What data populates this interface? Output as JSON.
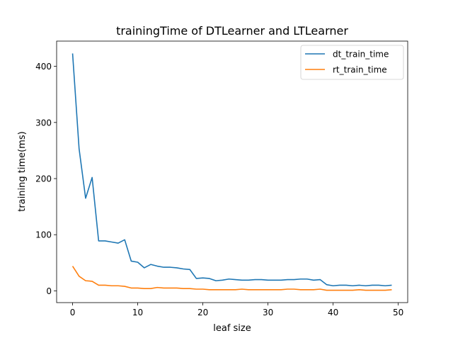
{
  "chart_data": {
    "type": "line",
    "title": "trainingTime of DTLearner and LTLearner",
    "xlabel": "leaf size",
    "ylabel": "training time(ms)",
    "xlim": [
      -2.45,
      51.45
    ],
    "ylim": [
      -21,
      445
    ],
    "xticks": [
      0,
      10,
      20,
      30,
      40,
      50
    ],
    "yticks": [
      0,
      100,
      200,
      300,
      400
    ],
    "grid": false,
    "legend_position": "top-right",
    "x": [
      0,
      1,
      2,
      3,
      4,
      5,
      6,
      7,
      8,
      9,
      10,
      11,
      12,
      13,
      14,
      15,
      16,
      17,
      18,
      19,
      20,
      21,
      22,
      23,
      24,
      25,
      26,
      27,
      28,
      29,
      30,
      31,
      32,
      33,
      34,
      35,
      36,
      37,
      38,
      39,
      40,
      41,
      42,
      43,
      44,
      45,
      46,
      47,
      48,
      49
    ],
    "series": [
      {
        "name": "dt_train_time",
        "color": "#1f77b4",
        "values": [
          423,
          253,
          165,
          202,
          89,
          89,
          87,
          85,
          91,
          53,
          51,
          41,
          47,
          44,
          42,
          42,
          41,
          39,
          38,
          22,
          23,
          22,
          18,
          19,
          21,
          20,
          19,
          19,
          20,
          20,
          19,
          19,
          19,
          20,
          20,
          21,
          21,
          19,
          20,
          11,
          9,
          10,
          10,
          9,
          10,
          9,
          10,
          10,
          9,
          10
        ]
      },
      {
        "name": "rt_train_time",
        "color": "#ff7f0e",
        "values": [
          44,
          26,
          18,
          17,
          10,
          10,
          9,
          9,
          8,
          5,
          5,
          4,
          4,
          6,
          5,
          5,
          5,
          4,
          4,
          3,
          3,
          2,
          2,
          2,
          2,
          2,
          3,
          2,
          2,
          2,
          2,
          2,
          2,
          3,
          3,
          2,
          2,
          2,
          3,
          1,
          1,
          1,
          1,
          1,
          2,
          1,
          1,
          1,
          1,
          2
        ]
      }
    ]
  }
}
